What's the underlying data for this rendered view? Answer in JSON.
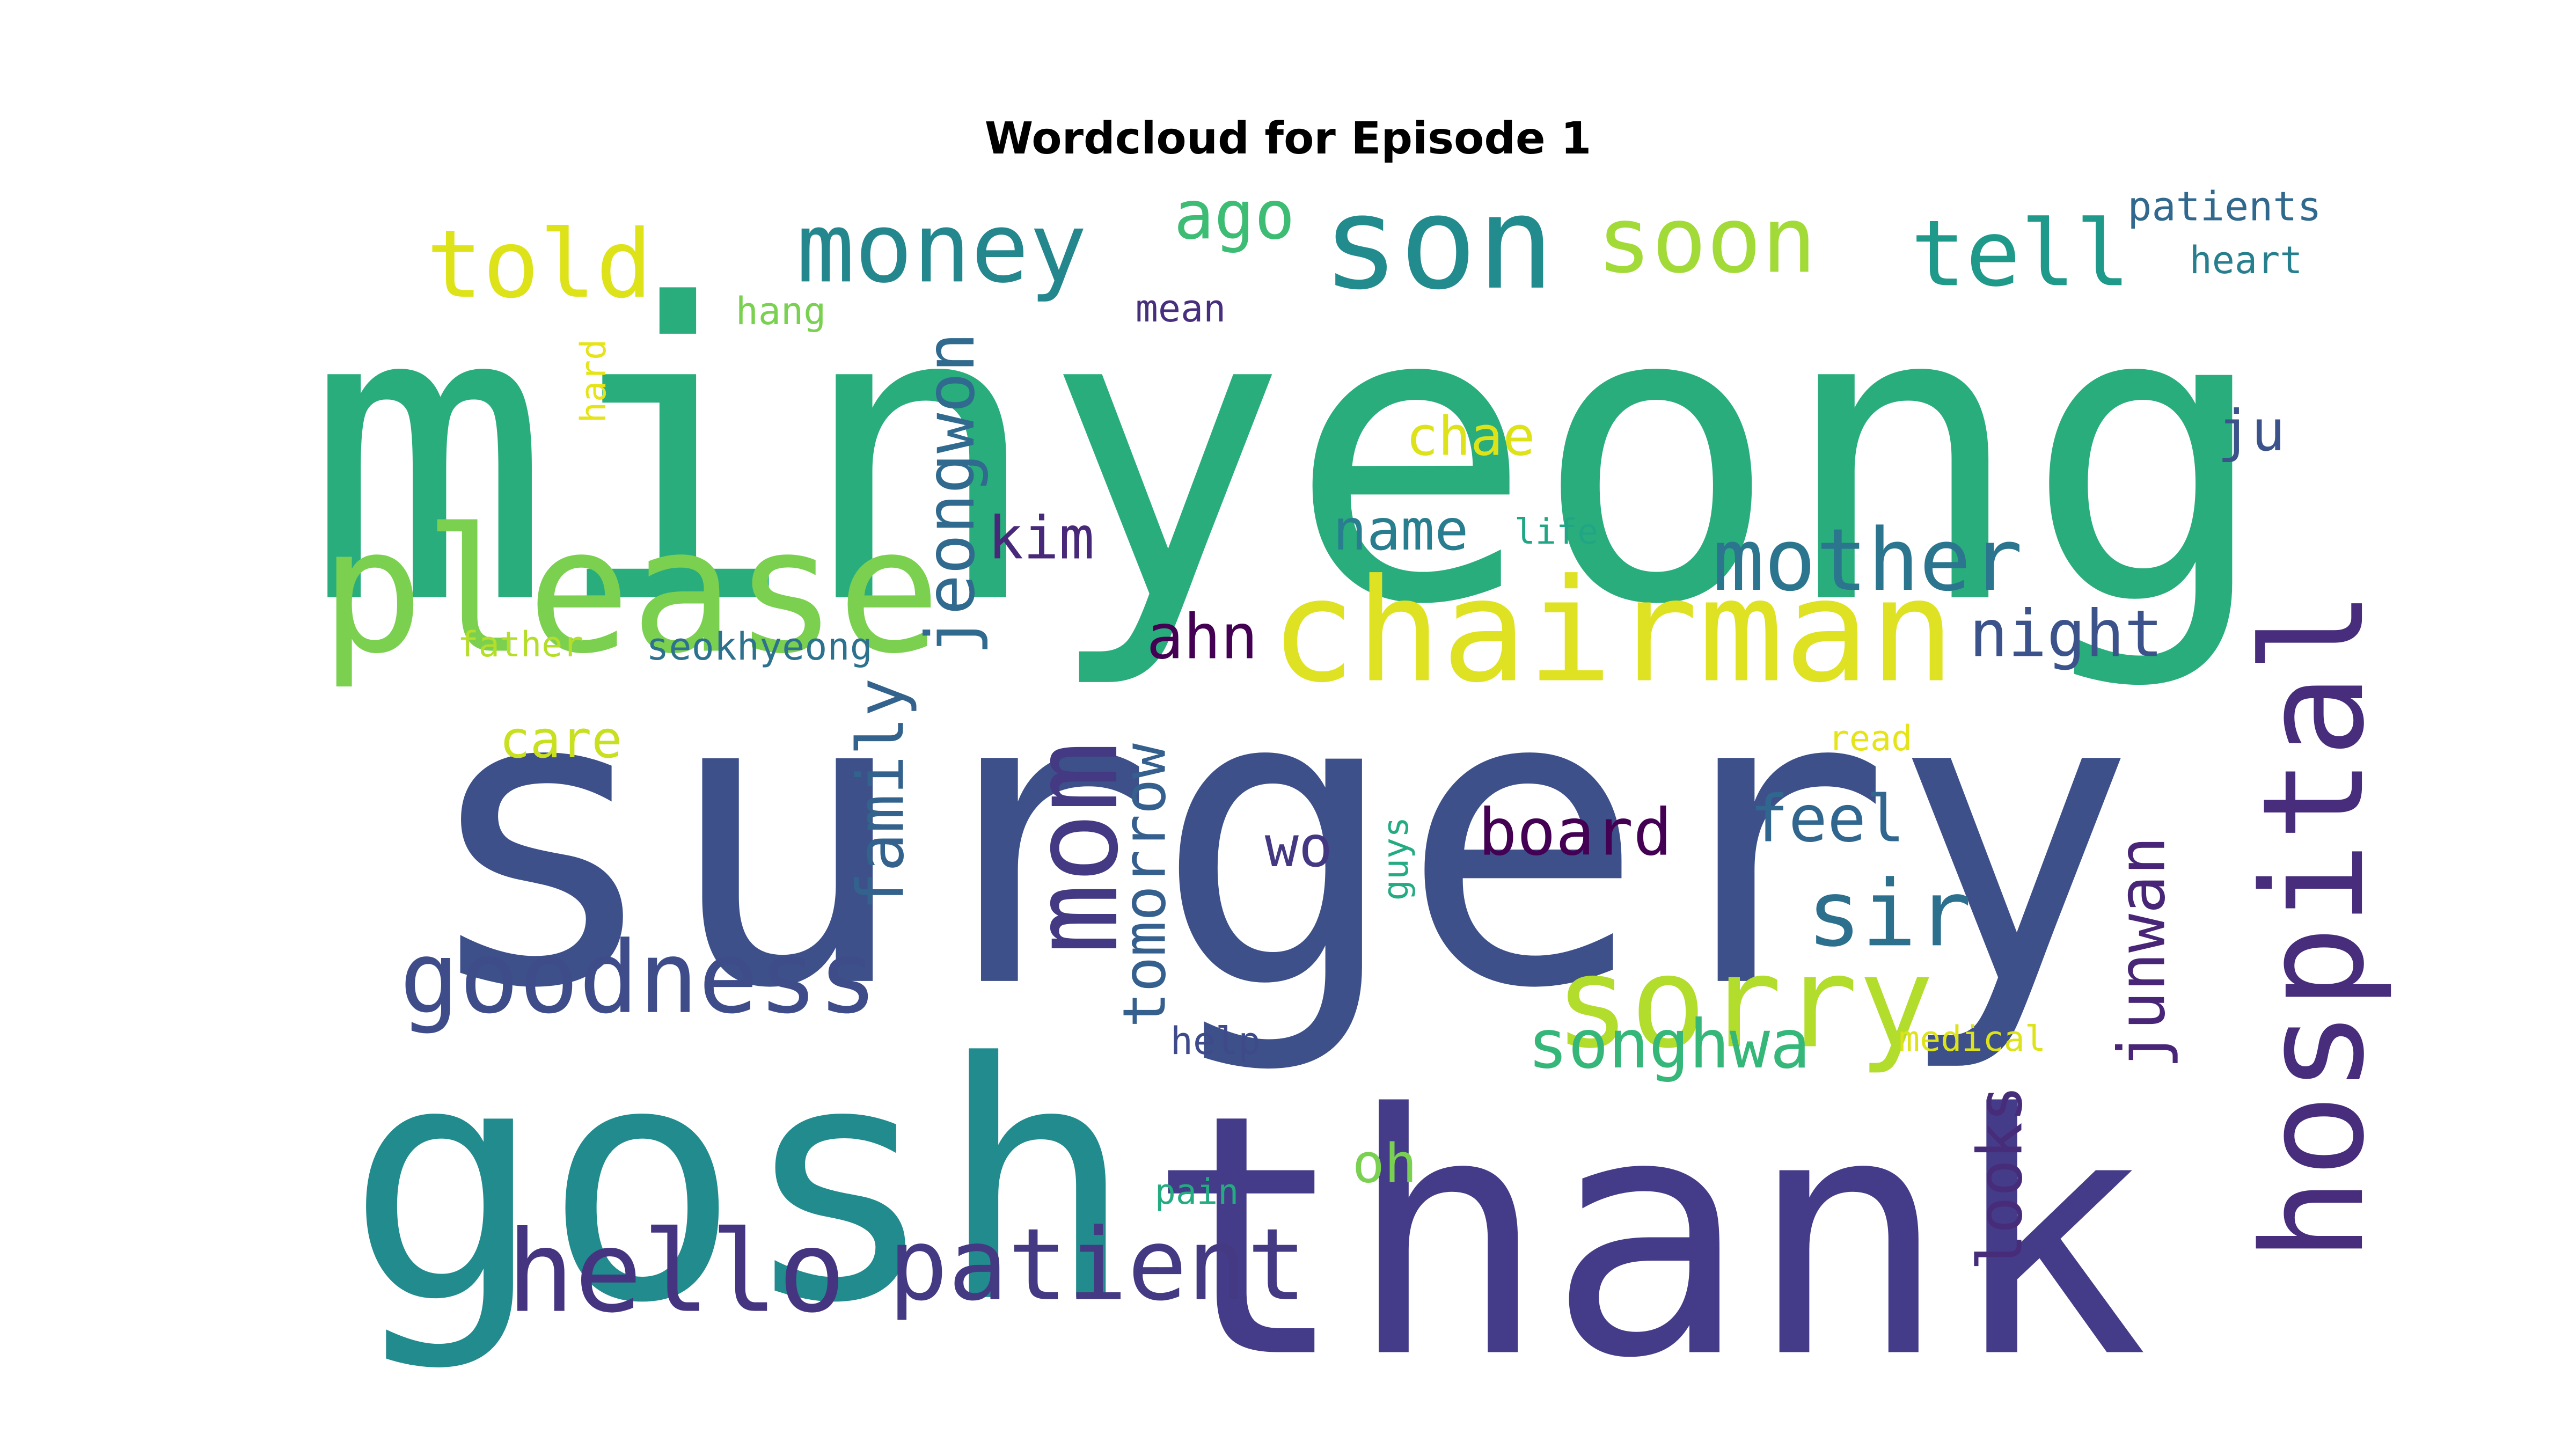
{
  "chart_data": {
    "type": "wordcloud",
    "title": "Wordcloud for Episode 1",
    "colormap": "viridis",
    "words": [
      {
        "text": "minyeong",
        "weight": 100,
        "color": "#2aad7d"
      },
      {
        "text": "surgery",
        "weight": 100,
        "color": "#3d508a"
      },
      {
        "text": "thank",
        "weight": 82,
        "color": "#453c89"
      },
      {
        "text": "gosh",
        "weight": 80,
        "color": "#228b8d"
      },
      {
        "text": "please",
        "weight": 52,
        "color": "#7bd050"
      },
      {
        "text": "chairman",
        "weight": 46,
        "color": "#dfe223"
      },
      {
        "text": "hospital",
        "weight": 45,
        "color": "#472d7b"
      },
      {
        "text": "son",
        "weight": 42,
        "color": "#228b8d"
      },
      {
        "text": "sorry",
        "weight": 40,
        "color": "#b2dd2c"
      },
      {
        "text": "mom",
        "weight": 38,
        "color": "#443a83"
      },
      {
        "text": "hello",
        "weight": 37,
        "color": "#453581"
      },
      {
        "text": "patient",
        "weight": 33,
        "color": "#443a83"
      },
      {
        "text": "goodness",
        "weight": 32,
        "color": "#3e4c8a"
      },
      {
        "text": "money",
        "weight": 32,
        "color": "#24878e"
      },
      {
        "text": "told",
        "weight": 30,
        "color": "#dde318"
      },
      {
        "text": "tell",
        "weight": 30,
        "color": "#1f998a"
      },
      {
        "text": "soon",
        "weight": 30,
        "color": "#a2da37"
      },
      {
        "text": "mother",
        "weight": 29,
        "color": "#2b758e"
      },
      {
        "text": "sir",
        "weight": 29,
        "color": "#2d708e"
      },
      {
        "text": "jeongwon",
        "weight": 22,
        "color": "#306a8e"
      },
      {
        "text": "ago",
        "weight": 22,
        "color": "#3dbc74"
      },
      {
        "text": "songhwa",
        "weight": 22,
        "color": "#35b779"
      },
      {
        "text": "night",
        "weight": 21,
        "color": "#3b528b"
      },
      {
        "text": "family",
        "weight": 21,
        "color": "#33628d"
      },
      {
        "text": "board",
        "weight": 21,
        "color": "#440154"
      },
      {
        "text": "feel",
        "weight": 21,
        "color": "#31668e"
      },
      {
        "text": "junwan",
        "weight": 21,
        "color": "#482576"
      },
      {
        "text": "looks",
        "weight": 20,
        "color": "#472c7a"
      },
      {
        "text": "tomorrow",
        "weight": 19,
        "color": "#355f8d"
      },
      {
        "text": "ahn",
        "weight": 19,
        "color": "#440154"
      },
      {
        "text": "kim",
        "weight": 19,
        "color": "#482878"
      },
      {
        "text": "name",
        "weight": 18,
        "color": "#287d8e"
      },
      {
        "text": "ju",
        "weight": 18,
        "color": "#3b528b"
      },
      {
        "text": "wo",
        "weight": 18,
        "color": "#453882"
      },
      {
        "text": "chae",
        "weight": 17,
        "color": "#dde318"
      },
      {
        "text": "oh",
        "weight": 17,
        "color": "#7ad151"
      },
      {
        "text": "care",
        "weight": 16,
        "color": "#c8e020"
      },
      {
        "text": "patients",
        "weight": 13,
        "color": "#31688e"
      },
      {
        "text": "heart",
        "weight": 12,
        "color": "#277f8e"
      },
      {
        "text": "seokhyeong",
        "weight": 13,
        "color": "#2c728e"
      },
      {
        "text": "mean",
        "weight": 12,
        "color": "#472f7d"
      },
      {
        "text": "hang",
        "weight": 12,
        "color": "#7ad151"
      },
      {
        "text": "help",
        "weight": 12,
        "color": "#3e4a89"
      },
      {
        "text": "medical",
        "weight": 11,
        "color": "#dde318"
      },
      {
        "text": "read",
        "weight": 11,
        "color": "#e5e419"
      },
      {
        "text": "life",
        "weight": 11,
        "color": "#21a685"
      },
      {
        "text": "father",
        "weight": 11,
        "color": "#b5de2b"
      },
      {
        "text": "pain",
        "weight": 11,
        "color": "#25ab82"
      },
      {
        "text": "guys",
        "weight": 11,
        "color": "#25ab82"
      },
      {
        "text": "hard",
        "weight": 11,
        "color": "#e5e419"
      }
    ]
  }
}
